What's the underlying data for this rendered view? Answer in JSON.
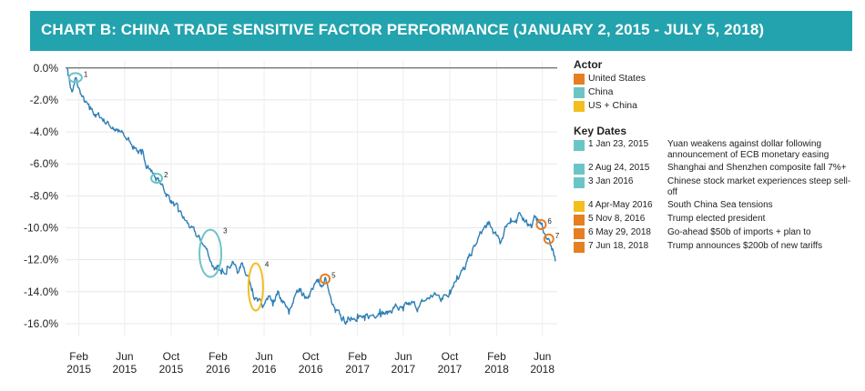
{
  "banner": {
    "title": "CHART B: CHINA TRADE SENSITIVE FACTOR PERFORMANCE (JANUARY 2, 2015 - JULY 5, 2018)",
    "color": "#22a3ad"
  },
  "chart_data": {
    "type": "line",
    "title": "CHART B: CHINA TRADE SENSITIVE FACTOR PERFORMANCE (JANUARY 2, 2015 - JULY 5, 2018)",
    "xlabel": "",
    "ylabel": "",
    "ylim": [
      -16.8,
      0.5
    ],
    "xlim": [
      "2014-12-28",
      "2018-07-10"
    ],
    "grid": true,
    "line_color": "#2f7fb5",
    "y_ticks": [
      0,
      -2,
      -4,
      -6,
      -8,
      -10,
      -12,
      -14,
      -16
    ],
    "y_tick_labels": [
      "0.0%",
      "-2.0%",
      "-4.0%",
      "-6.0%",
      "-8.0%",
      "-10.0%",
      "-12.0%",
      "-14.0%",
      "-16.0%"
    ],
    "x_ticks": [
      {
        "date": "2015-02-01",
        "label1": "Feb",
        "label2": "2015"
      },
      {
        "date": "2015-06-01",
        "label1": "Jun",
        "label2": "2015"
      },
      {
        "date": "2015-10-01",
        "label1": "Oct",
        "label2": "2015"
      },
      {
        "date": "2016-02-01",
        "label1": "Feb",
        "label2": "2016"
      },
      {
        "date": "2016-06-01",
        "label1": "Jun",
        "label2": "2016"
      },
      {
        "date": "2016-10-01",
        "label1": "Oct",
        "label2": "2016"
      },
      {
        "date": "2017-02-01",
        "label1": "Feb",
        "label2": "2017"
      },
      {
        "date": "2017-06-01",
        "label1": "Jun",
        "label2": "2017"
      },
      {
        "date": "2017-10-01",
        "label1": "Oct",
        "label2": "2017"
      },
      {
        "date": "2018-02-01",
        "label1": "Feb",
        "label2": "2018"
      },
      {
        "date": "2018-06-01",
        "label1": "Jun",
        "label2": "2018"
      }
    ],
    "series": [
      {
        "points": [
          [
            "2015-01-02",
            0.0
          ],
          [
            "2015-01-08",
            -0.9
          ],
          [
            "2015-01-14",
            -1.5
          ],
          [
            "2015-01-20",
            -1.0
          ],
          [
            "2015-01-23",
            -0.6
          ],
          [
            "2015-01-28",
            -1.1
          ],
          [
            "2015-02-05",
            -1.6
          ],
          [
            "2015-02-15",
            -2.1
          ],
          [
            "2015-03-01",
            -2.6
          ],
          [
            "2015-03-15",
            -2.9
          ],
          [
            "2015-04-01",
            -3.1
          ],
          [
            "2015-04-15",
            -3.4
          ],
          [
            "2015-05-01",
            -3.7
          ],
          [
            "2015-05-15",
            -4.0
          ],
          [
            "2015-06-01",
            -4.3
          ],
          [
            "2015-06-15",
            -4.6
          ],
          [
            "2015-07-01",
            -5.0
          ],
          [
            "2015-07-15",
            -5.4
          ],
          [
            "2015-08-01",
            -6.1
          ],
          [
            "2015-08-15",
            -6.6
          ],
          [
            "2015-08-24",
            -6.9
          ],
          [
            "2015-09-05",
            -7.3
          ],
          [
            "2015-09-20",
            -7.9
          ],
          [
            "2015-10-05",
            -8.4
          ],
          [
            "2015-10-20",
            -9.0
          ],
          [
            "2015-11-05",
            -9.5
          ],
          [
            "2015-11-20",
            -10.0
          ],
          [
            "2015-12-05",
            -10.5
          ],
          [
            "2015-12-20",
            -10.9
          ],
          [
            "2016-01-05",
            -11.5
          ],
          [
            "2016-01-15",
            -12.2
          ],
          [
            "2016-01-28",
            -12.6
          ],
          [
            "2016-02-10",
            -12.9
          ],
          [
            "2016-02-25",
            -12.4
          ],
          [
            "2016-03-10",
            -12.1
          ],
          [
            "2016-03-25",
            -12.8
          ],
          [
            "2016-04-05",
            -12.2
          ],
          [
            "2016-04-20",
            -13.0
          ],
          [
            "2016-05-01",
            -13.8
          ],
          [
            "2016-05-15",
            -14.6
          ],
          [
            "2016-05-28",
            -15.0
          ],
          [
            "2016-06-10",
            -14.5
          ],
          [
            "2016-06-24",
            -14.9
          ],
          [
            "2016-07-05",
            -14.2
          ],
          [
            "2016-07-20",
            -14.7
          ],
          [
            "2016-08-05",
            -15.4
          ],
          [
            "2016-08-20",
            -14.3
          ],
          [
            "2016-09-05",
            -13.8
          ],
          [
            "2016-09-20",
            -14.4
          ],
          [
            "2016-10-05",
            -13.8
          ],
          [
            "2016-10-20",
            -13.4
          ],
          [
            "2016-11-01",
            -13.6
          ],
          [
            "2016-11-08",
            -13.1
          ],
          [
            "2016-11-15",
            -13.7
          ],
          [
            "2016-11-25",
            -14.7
          ],
          [
            "2016-12-05",
            -15.3
          ],
          [
            "2016-12-20",
            -15.7
          ],
          [
            "2017-01-05",
            -15.9
          ],
          [
            "2017-01-15",
            -15.6
          ],
          [
            "2017-02-01",
            -15.4
          ],
          [
            "2017-02-20",
            -15.8
          ],
          [
            "2017-03-10",
            -15.5
          ],
          [
            "2017-04-01",
            -15.1
          ],
          [
            "2017-04-20",
            -15.4
          ],
          [
            "2017-05-10",
            -14.9
          ],
          [
            "2017-06-01",
            -15.2
          ],
          [
            "2017-06-20",
            -14.8
          ],
          [
            "2017-07-10",
            -15.0
          ],
          [
            "2017-08-01",
            -14.5
          ],
          [
            "2017-08-20",
            -14.2
          ],
          [
            "2017-09-10",
            -14.4
          ],
          [
            "2017-10-01",
            -13.9
          ],
          [
            "2017-10-20",
            -13.0
          ],
          [
            "2017-11-10",
            -12.6
          ],
          [
            "2017-11-25",
            -11.7
          ],
          [
            "2017-12-10",
            -11.0
          ],
          [
            "2017-12-25",
            -10.2
          ],
          [
            "2018-01-10",
            -9.8
          ],
          [
            "2018-01-25",
            -10.3
          ],
          [
            "2018-02-10",
            -11.0
          ],
          [
            "2018-02-25",
            -9.9
          ],
          [
            "2018-03-10",
            -9.4
          ],
          [
            "2018-03-25",
            -9.7
          ],
          [
            "2018-04-05",
            -9.2
          ],
          [
            "2018-04-20",
            -9.5
          ],
          [
            "2018-05-05",
            -9.9
          ],
          [
            "2018-05-15",
            -9.3
          ],
          [
            "2018-05-29",
            -9.8
          ],
          [
            "2018-06-08",
            -10.4
          ],
          [
            "2018-06-18",
            -10.7
          ],
          [
            "2018-06-26",
            -11.4
          ],
          [
            "2018-07-05",
            -12.1
          ]
        ]
      }
    ],
    "annotations": [
      {
        "num": "1",
        "date": "2015-01-23",
        "y": -0.6,
        "color": "#6cc5c5",
        "rx": 7,
        "ry": 5
      },
      {
        "num": "2",
        "date": "2015-08-24",
        "y": -6.9,
        "color": "#6cc5c5",
        "rx": 6,
        "ry": 5
      },
      {
        "num": "3",
        "date": "2016-01-12",
        "y": -11.6,
        "color": "#6cc5c5",
        "rx": 12,
        "ry": 26
      },
      {
        "num": "4",
        "date": "2016-05-10",
        "y": -13.7,
        "color": "#f4be1d",
        "rx": 8,
        "ry": 26
      },
      {
        "num": "5",
        "date": "2016-11-08",
        "y": -13.2,
        "color": "#e67e22",
        "rx": 5,
        "ry": 5
      },
      {
        "num": "6",
        "date": "2018-05-29",
        "y": -9.8,
        "color": "#e67e22",
        "rx": 5,
        "ry": 5
      },
      {
        "num": "7",
        "date": "2018-06-18",
        "y": -10.7,
        "color": "#e67e22",
        "rx": 5,
        "ry": 5
      }
    ]
  },
  "legend": {
    "actor_title": "Actor",
    "actors": [
      {
        "label": "United States",
        "color": "#e67e22"
      },
      {
        "label": "China",
        "color": "#6cc5c5"
      },
      {
        "label": "US + China",
        "color": "#f4be1d"
      }
    ],
    "keydates_title": "Key Dates",
    "keydates": [
      {
        "num": "1",
        "date": "Jan 23, 2015",
        "desc": "Yuan weakens against dollar following announcement of ECB monetary easing",
        "color": "#6cc5c5"
      },
      {
        "num": "2",
        "date": "Aug 24, 2015",
        "desc": "Shanghai and Shenzhen composite fall 7%+",
        "color": "#6cc5c5"
      },
      {
        "num": "3",
        "date": "Jan 2016",
        "desc": "Chinese stock market experiences steep sell-off",
        "color": "#6cc5c5"
      },
      {
        "num": "4",
        "date": "Apr-May 2016",
        "desc": "South China Sea tensions",
        "color": "#f4be1d"
      },
      {
        "num": "5",
        "date": "Nov 8, 2016",
        "desc": "Trump elected president",
        "color": "#e67e22"
      },
      {
        "num": "6",
        "date": "May 29, 2018",
        "desc": "Go-ahead $50b of imports + plan to",
        "color": "#e67e22"
      },
      {
        "num": "7",
        "date": "Jun 18, 2018",
        "desc": "Trump announces $200b of new tariffs",
        "color": "#e67e22"
      }
    ]
  }
}
